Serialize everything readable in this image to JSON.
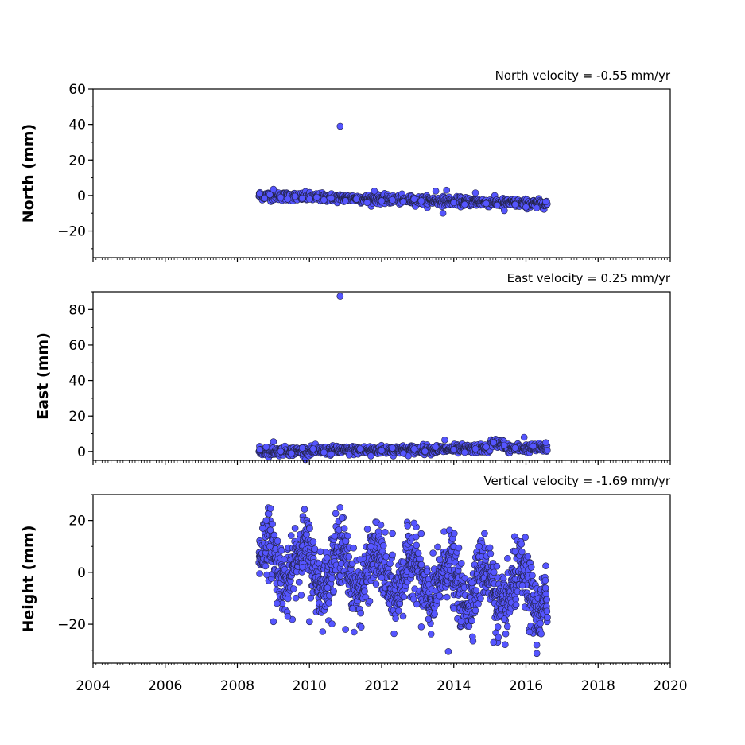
{
  "chart_data": [
    {
      "type": "scatter",
      "title": "North velocity = -0.55 mm/yr",
      "ylabel": "North (mm)",
      "xlabel": "",
      "xlim": [
        2004,
        2020
      ],
      "ylim": [
        -35,
        60
      ],
      "yticks": [
        "60",
        "40",
        "20",
        "0",
        "−20"
      ],
      "ytick_values": [
        60,
        40,
        20,
        0,
        -20
      ],
      "grid": false,
      "series": [
        {
          "marker_color": "#5555ff",
          "edge_color": "#222244",
          "time_span": [
            2008.6,
            2016.6
          ],
          "values": [
            [
              2008.62,
              1.0
            ],
            [
              2008.75,
              -1.5
            ],
            [
              2008.9,
              0.5
            ],
            [
              2009.0,
              3.5
            ],
            [
              2009.2,
              -1.0
            ],
            [
              2009.4,
              -2.0
            ],
            [
              2009.6,
              -0.5
            ],
            [
              2009.8,
              -1.5
            ],
            [
              2010.0,
              -2.0
            ],
            [
              2010.2,
              -1.0
            ],
            [
              2010.4,
              -2.5
            ],
            [
              2010.6,
              -1.5
            ],
            [
              2010.85,
              39.0
            ],
            [
              2011.0,
              -3.0
            ],
            [
              2011.3,
              -2.0
            ],
            [
              2011.6,
              -4.0
            ],
            [
              2011.8,
              2.5
            ],
            [
              2012.0,
              -3.0
            ],
            [
              2012.3,
              -2.5
            ],
            [
              2012.6,
              -3.5
            ],
            [
              2012.9,
              -2.0
            ],
            [
              2013.1,
              -3.0
            ],
            [
              2013.5,
              2.5
            ],
            [
              2013.7,
              -10.0
            ],
            [
              2013.8,
              3.0
            ],
            [
              2014.0,
              -4.0
            ],
            [
              2014.3,
              -5.0
            ],
            [
              2014.6,
              1.5
            ],
            [
              2014.9,
              -4.5
            ],
            [
              2015.2,
              -5.5
            ],
            [
              2015.4,
              -8.5
            ],
            [
              2015.7,
              -5.0
            ],
            [
              2016.0,
              -6.5
            ],
            [
              2016.3,
              -7.0
            ],
            [
              2016.55,
              -3.5
            ]
          ]
        }
      ]
    },
    {
      "type": "scatter",
      "title": "East velocity = 0.25 mm/yr",
      "ylabel": "East (mm)",
      "xlabel": "",
      "xlim": [
        2004,
        2020
      ],
      "ylim": [
        -5,
        90
      ],
      "yticks": [
        "80",
        "60",
        "40",
        "20",
        "0"
      ],
      "ytick_values": [
        80,
        60,
        40,
        20,
        0
      ],
      "grid": false,
      "series": [
        {
          "marker_color": "#5555ff",
          "edge_color": "#222244",
          "time_span": [
            2008.6,
            2016.6
          ],
          "values": [
            [
              2008.62,
              1.0
            ],
            [
              2008.8,
              2.5
            ],
            [
              2009.0,
              5.5
            ],
            [
              2009.2,
              0.0
            ],
            [
              2009.5,
              -1.0
            ],
            [
              2009.8,
              2.0
            ],
            [
              2010.1,
              1.5
            ],
            [
              2010.4,
              -0.5
            ],
            [
              2010.6,
              -1.5
            ],
            [
              2010.85,
              87.5
            ],
            [
              2011.1,
              -2.0
            ],
            [
              2011.4,
              1.5
            ],
            [
              2011.7,
              -2.5
            ],
            [
              2012.0,
              0.5
            ],
            [
              2012.3,
              2.0
            ],
            [
              2012.6,
              -1.0
            ],
            [
              2012.9,
              1.5
            ],
            [
              2013.2,
              0.0
            ],
            [
              2013.5,
              2.5
            ],
            [
              2013.75,
              6.5
            ],
            [
              2014.0,
              1.0
            ],
            [
              2014.3,
              -0.5
            ],
            [
              2014.6,
              1.5
            ],
            [
              2014.9,
              2.5
            ],
            [
              2015.1,
              5.0
            ],
            [
              2015.4,
              3.5
            ],
            [
              2015.7,
              2.0
            ],
            [
              2015.95,
              8.0
            ],
            [
              2016.2,
              3.0
            ],
            [
              2016.55,
              5.0
            ]
          ]
        }
      ]
    },
    {
      "type": "scatter",
      "title": "Vertical velocity = -1.69 mm/yr",
      "ylabel": "Height (mm)",
      "xlabel": "",
      "xlim": [
        2004,
        2020
      ],
      "ylim": [
        -35,
        30
      ],
      "yticks": [
        "20",
        "0",
        "−20"
      ],
      "ytick_values": [
        20,
        0,
        -20
      ],
      "grid": false,
      "series": [
        {
          "marker_color": "#5555ff",
          "edge_color": "#222244",
          "time_span": [
            2008.6,
            2016.6
          ],
          "values": [
            [
              2008.62,
              -0.5
            ],
            [
              2008.7,
              17.0
            ],
            [
              2008.8,
              20.0
            ],
            [
              2008.9,
              10.0
            ],
            [
              2009.0,
              -19.0
            ],
            [
              2009.1,
              -12.0
            ],
            [
              2009.3,
              5.0
            ],
            [
              2009.4,
              -17.0
            ],
            [
              2009.6,
              17.0
            ],
            [
              2009.8,
              2.0
            ],
            [
              2010.0,
              -19.0
            ],
            [
              2010.3,
              8.0
            ],
            [
              2010.5,
              -6.0
            ],
            [
              2010.7,
              14.0
            ],
            [
              2010.85,
              25.0
            ],
            [
              2010.9,
              21.0
            ],
            [
              2011.0,
              -22.0
            ],
            [
              2011.2,
              -14.0
            ],
            [
              2011.4,
              5.0
            ],
            [
              2011.7,
              10.0
            ],
            [
              2012.0,
              -2.0
            ],
            [
              2012.3,
              15.0
            ],
            [
              2012.6,
              4.0
            ],
            [
              2012.9,
              19.0
            ],
            [
              2013.1,
              -21.0
            ],
            [
              2013.3,
              -18.0
            ],
            [
              2013.6,
              -9.0
            ],
            [
              2013.85,
              -30.5
            ],
            [
              2014.0,
              -14.0
            ],
            [
              2014.2,
              -19.0
            ],
            [
              2014.5,
              -4.0
            ],
            [
              2014.7,
              10.0
            ],
            [
              2015.0,
              9.5
            ],
            [
              2015.1,
              -27.0
            ],
            [
              2015.4,
              -18.0
            ],
            [
              2015.7,
              8.0
            ],
            [
              2015.9,
              -5.0
            ],
            [
              2016.1,
              -23.0
            ],
            [
              2016.3,
              -28.0
            ],
            [
              2016.55,
              2.5
            ]
          ]
        }
      ]
    }
  ],
  "x_axis": {
    "ticks": [
      "2004",
      "2006",
      "2008",
      "2010",
      "2012",
      "2014",
      "2016",
      "2018",
      "2020"
    ],
    "tick_values": [
      2004,
      2006,
      2008,
      2010,
      2012,
      2014,
      2016,
      2018,
      2020
    ]
  }
}
